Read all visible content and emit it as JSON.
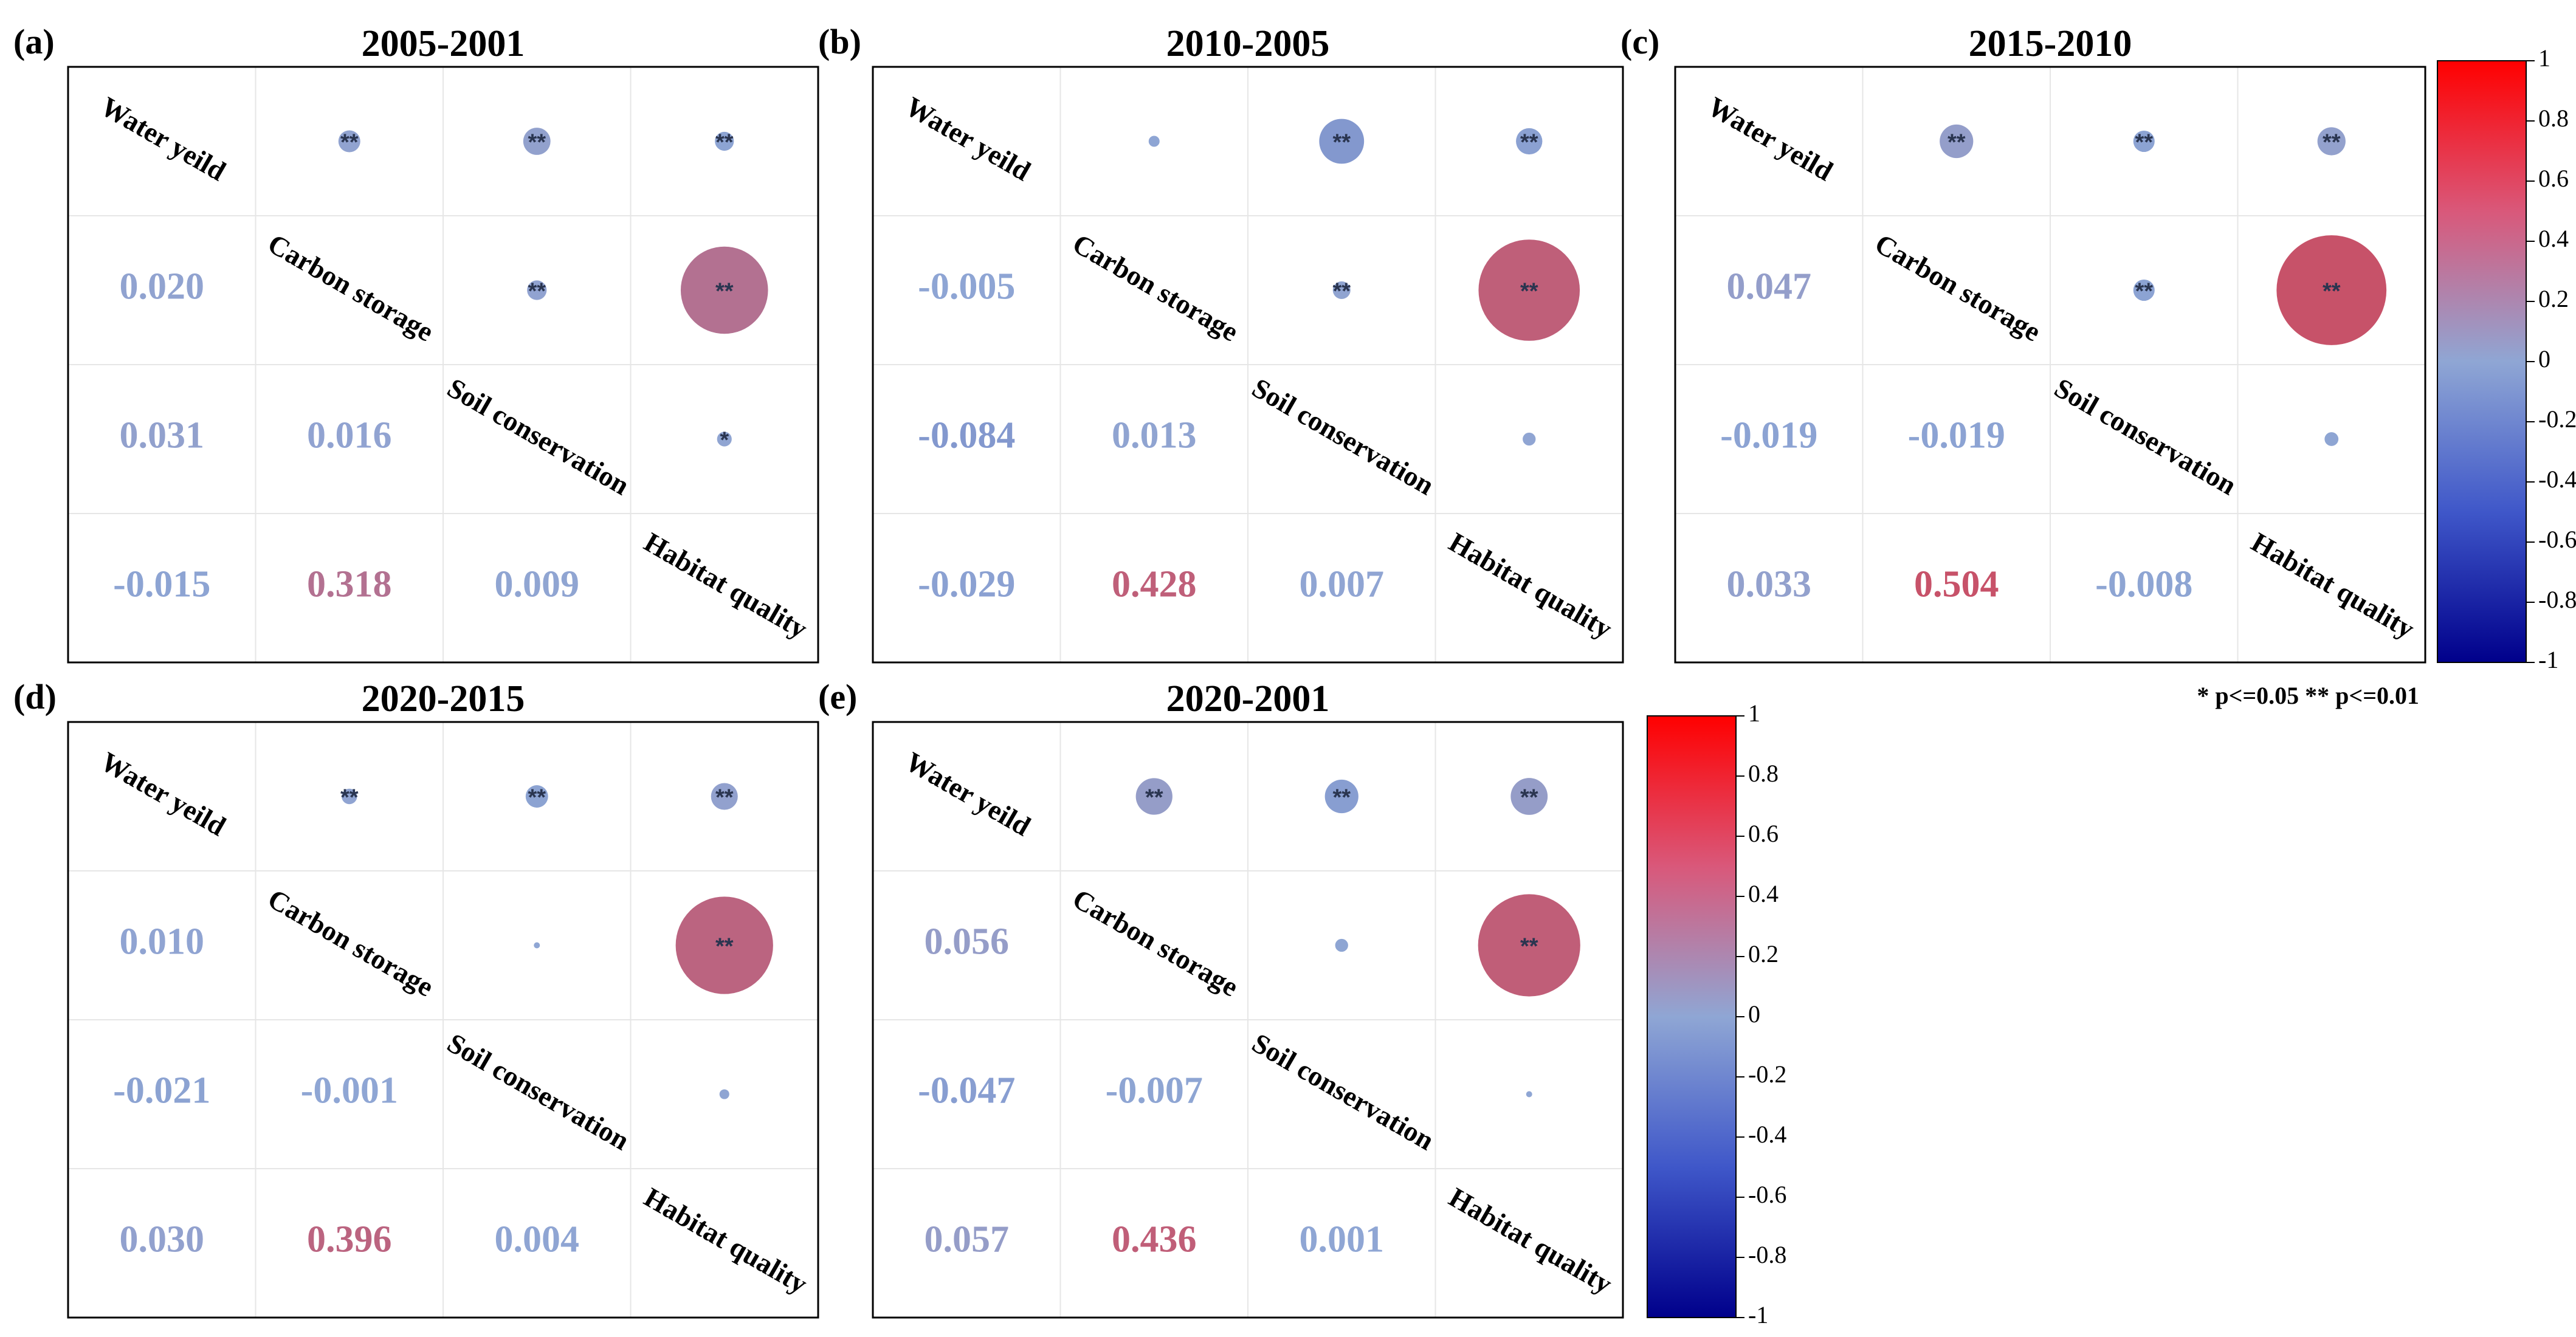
{
  "legend_note": "* p<=0.05  ** p<=0.01",
  "colorbar_ticks": [
    "1",
    "0.8",
    "0.6",
    "0.4",
    "0.2",
    "0",
    "-0.2",
    "-0.4",
    "-0.6",
    "-0.8",
    "-1"
  ],
  "colors": {
    "negative": "#00008b",
    "zero": "#8fa6d4",
    "positive": "#ff0000"
  },
  "chart_data": [
    {
      "type": "heatmap",
      "letter": "(a)",
      "title": "2005-2001",
      "variables": [
        "Water yeild",
        "Carbon storage",
        "Soil conservation",
        "Habitat quality"
      ],
      "lower_values": [
        [
          1,
          0,
          "0.020"
        ],
        [
          2,
          0,
          "0.031"
        ],
        [
          2,
          1,
          "0.016"
        ],
        [
          3,
          0,
          "-0.015"
        ],
        [
          3,
          1,
          "0.318"
        ],
        [
          3,
          2,
          "0.009"
        ]
      ],
      "upper_significance": [
        [
          0,
          1,
          "**"
        ],
        [
          0,
          2,
          "**"
        ],
        [
          0,
          3,
          "**"
        ],
        [
          1,
          2,
          "**"
        ],
        [
          1,
          3,
          "**"
        ],
        [
          2,
          3,
          "*"
        ]
      ],
      "colorbar_range": [
        -1,
        1
      ]
    },
    {
      "type": "heatmap",
      "letter": "(b)",
      "title": "2010-2005",
      "variables": [
        "Water yeild",
        "Carbon storage",
        "Soil conservation",
        "Habitat quality"
      ],
      "lower_values": [
        [
          1,
          0,
          "-0.005"
        ],
        [
          2,
          0,
          "-0.084"
        ],
        [
          2,
          1,
          "0.013"
        ],
        [
          3,
          0,
          "-0.029"
        ],
        [
          3,
          1,
          "0.428"
        ],
        [
          3,
          2,
          "0.007"
        ]
      ],
      "upper_significance": [
        [
          0,
          1,
          ""
        ],
        [
          0,
          2,
          "**"
        ],
        [
          0,
          3,
          "**"
        ],
        [
          1,
          2,
          "**"
        ],
        [
          1,
          3,
          "**"
        ],
        [
          2,
          3,
          ""
        ]
      ],
      "colorbar_range": [
        -1,
        1
      ]
    },
    {
      "type": "heatmap",
      "letter": "(c)",
      "title": "2015-2010",
      "variables": [
        "Water yeild",
        "Carbon storage",
        "Soil conservation",
        "Habitat quality"
      ],
      "lower_values": [
        [
          1,
          0,
          "0.047"
        ],
        [
          2,
          0,
          "-0.019"
        ],
        [
          2,
          1,
          "-0.019"
        ],
        [
          3,
          0,
          "0.033"
        ],
        [
          3,
          1,
          "0.504"
        ],
        [
          3,
          2,
          "-0.008"
        ]
      ],
      "upper_significance": [
        [
          0,
          1,
          "**"
        ],
        [
          0,
          2,
          "**"
        ],
        [
          0,
          3,
          "**"
        ],
        [
          1,
          2,
          "**"
        ],
        [
          1,
          3,
          "**"
        ],
        [
          2,
          3,
          ""
        ]
      ],
      "colorbar_range": [
        -1,
        1
      ]
    },
    {
      "type": "heatmap",
      "letter": "(d)",
      "title": "2020-2015",
      "variables": [
        "Water yeild",
        "Carbon storage",
        "Soil conservation",
        "Habitat quality"
      ],
      "lower_values": [
        [
          1,
          0,
          "0.010"
        ],
        [
          2,
          0,
          "-0.021"
        ],
        [
          2,
          1,
          "-0.001"
        ],
        [
          3,
          0,
          "0.030"
        ],
        [
          3,
          1,
          "0.396"
        ],
        [
          3,
          2,
          "0.004"
        ]
      ],
      "upper_significance": [
        [
          0,
          1,
          "**"
        ],
        [
          0,
          2,
          "**"
        ],
        [
          0,
          3,
          "**"
        ],
        [
          1,
          2,
          ""
        ],
        [
          1,
          3,
          "**"
        ],
        [
          2,
          3,
          ""
        ]
      ],
      "colorbar_range": [
        -1,
        1
      ]
    },
    {
      "type": "heatmap",
      "letter": "(e)",
      "title": "2020-2001",
      "variables": [
        "Water yeild",
        "Carbon storage",
        "Soil conservation",
        "Habitat quality"
      ],
      "lower_values": [
        [
          1,
          0,
          "0.056"
        ],
        [
          2,
          0,
          "-0.047"
        ],
        [
          2,
          1,
          "-0.007"
        ],
        [
          3,
          0,
          "0.057"
        ],
        [
          3,
          1,
          "0.436"
        ],
        [
          3,
          2,
          "0.001"
        ]
      ],
      "upper_significance": [
        [
          0,
          1,
          "**"
        ],
        [
          0,
          2,
          "**"
        ],
        [
          0,
          3,
          "**"
        ],
        [
          1,
          2,
          ""
        ],
        [
          1,
          3,
          "**"
        ],
        [
          2,
          3,
          ""
        ]
      ],
      "colorbar_range": [
        -1,
        1
      ]
    }
  ]
}
